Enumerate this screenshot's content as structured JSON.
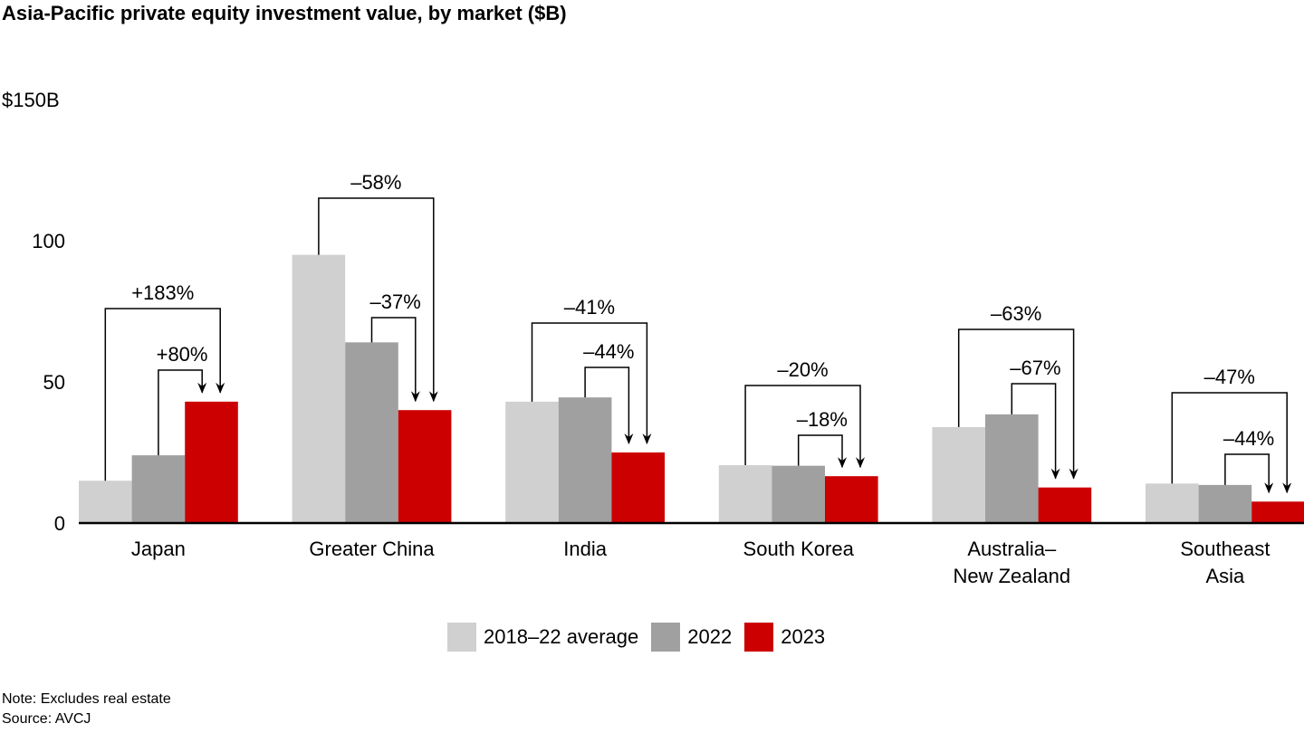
{
  "title": "Asia-Pacific private equity investment value, by market ($B)",
  "chart_data": {
    "type": "bar",
    "title": "Asia-Pacific private equity investment value, by market ($B)",
    "categories": [
      "Japan",
      "Greater China",
      "India",
      "South Korea",
      "Australia–New Zealand",
      "Southeast Asia"
    ],
    "category_labels": [
      [
        "Japan"
      ],
      [
        "Greater China"
      ],
      [
        "India"
      ],
      [
        "South Korea"
      ],
      [
        "Australia–",
        "New Zealand"
      ],
      [
        "Southeast",
        "Asia"
      ]
    ],
    "series": [
      {
        "name": "2018–22 average",
        "color": "#d0d0d0",
        "values": [
          15,
          95,
          43,
          20.5,
          34,
          14
        ]
      },
      {
        "name": "2022",
        "color": "#a0a0a0",
        "values": [
          24,
          64,
          44.5,
          20.3,
          38.5,
          13.5
        ]
      },
      {
        "name": "2023",
        "color": "#cc0000",
        "values": [
          43,
          40,
          25,
          16.6,
          12.6,
          7.6
        ]
      }
    ],
    "annotations": {
      "vs_average": [
        "+183%",
        "–58%",
        "–41%",
        "–20%",
        "–63%",
        "–47%"
      ],
      "vs_2022": [
        "+80%",
        "–37%",
        "–44%",
        "–18%",
        "–67%",
        "–44%"
      ]
    },
    "yticks": [
      {
        "value": 0,
        "label": "0"
      },
      {
        "value": 50,
        "label": "50"
      },
      {
        "value": 100,
        "label": "100"
      },
      {
        "value": 150,
        "label": "$150B"
      }
    ],
    "ylim": [
      0,
      150
    ],
    "grid": false,
    "legend_position": "bottom"
  },
  "note": "Note: Excludes real estate",
  "source": "Source: AVCJ"
}
